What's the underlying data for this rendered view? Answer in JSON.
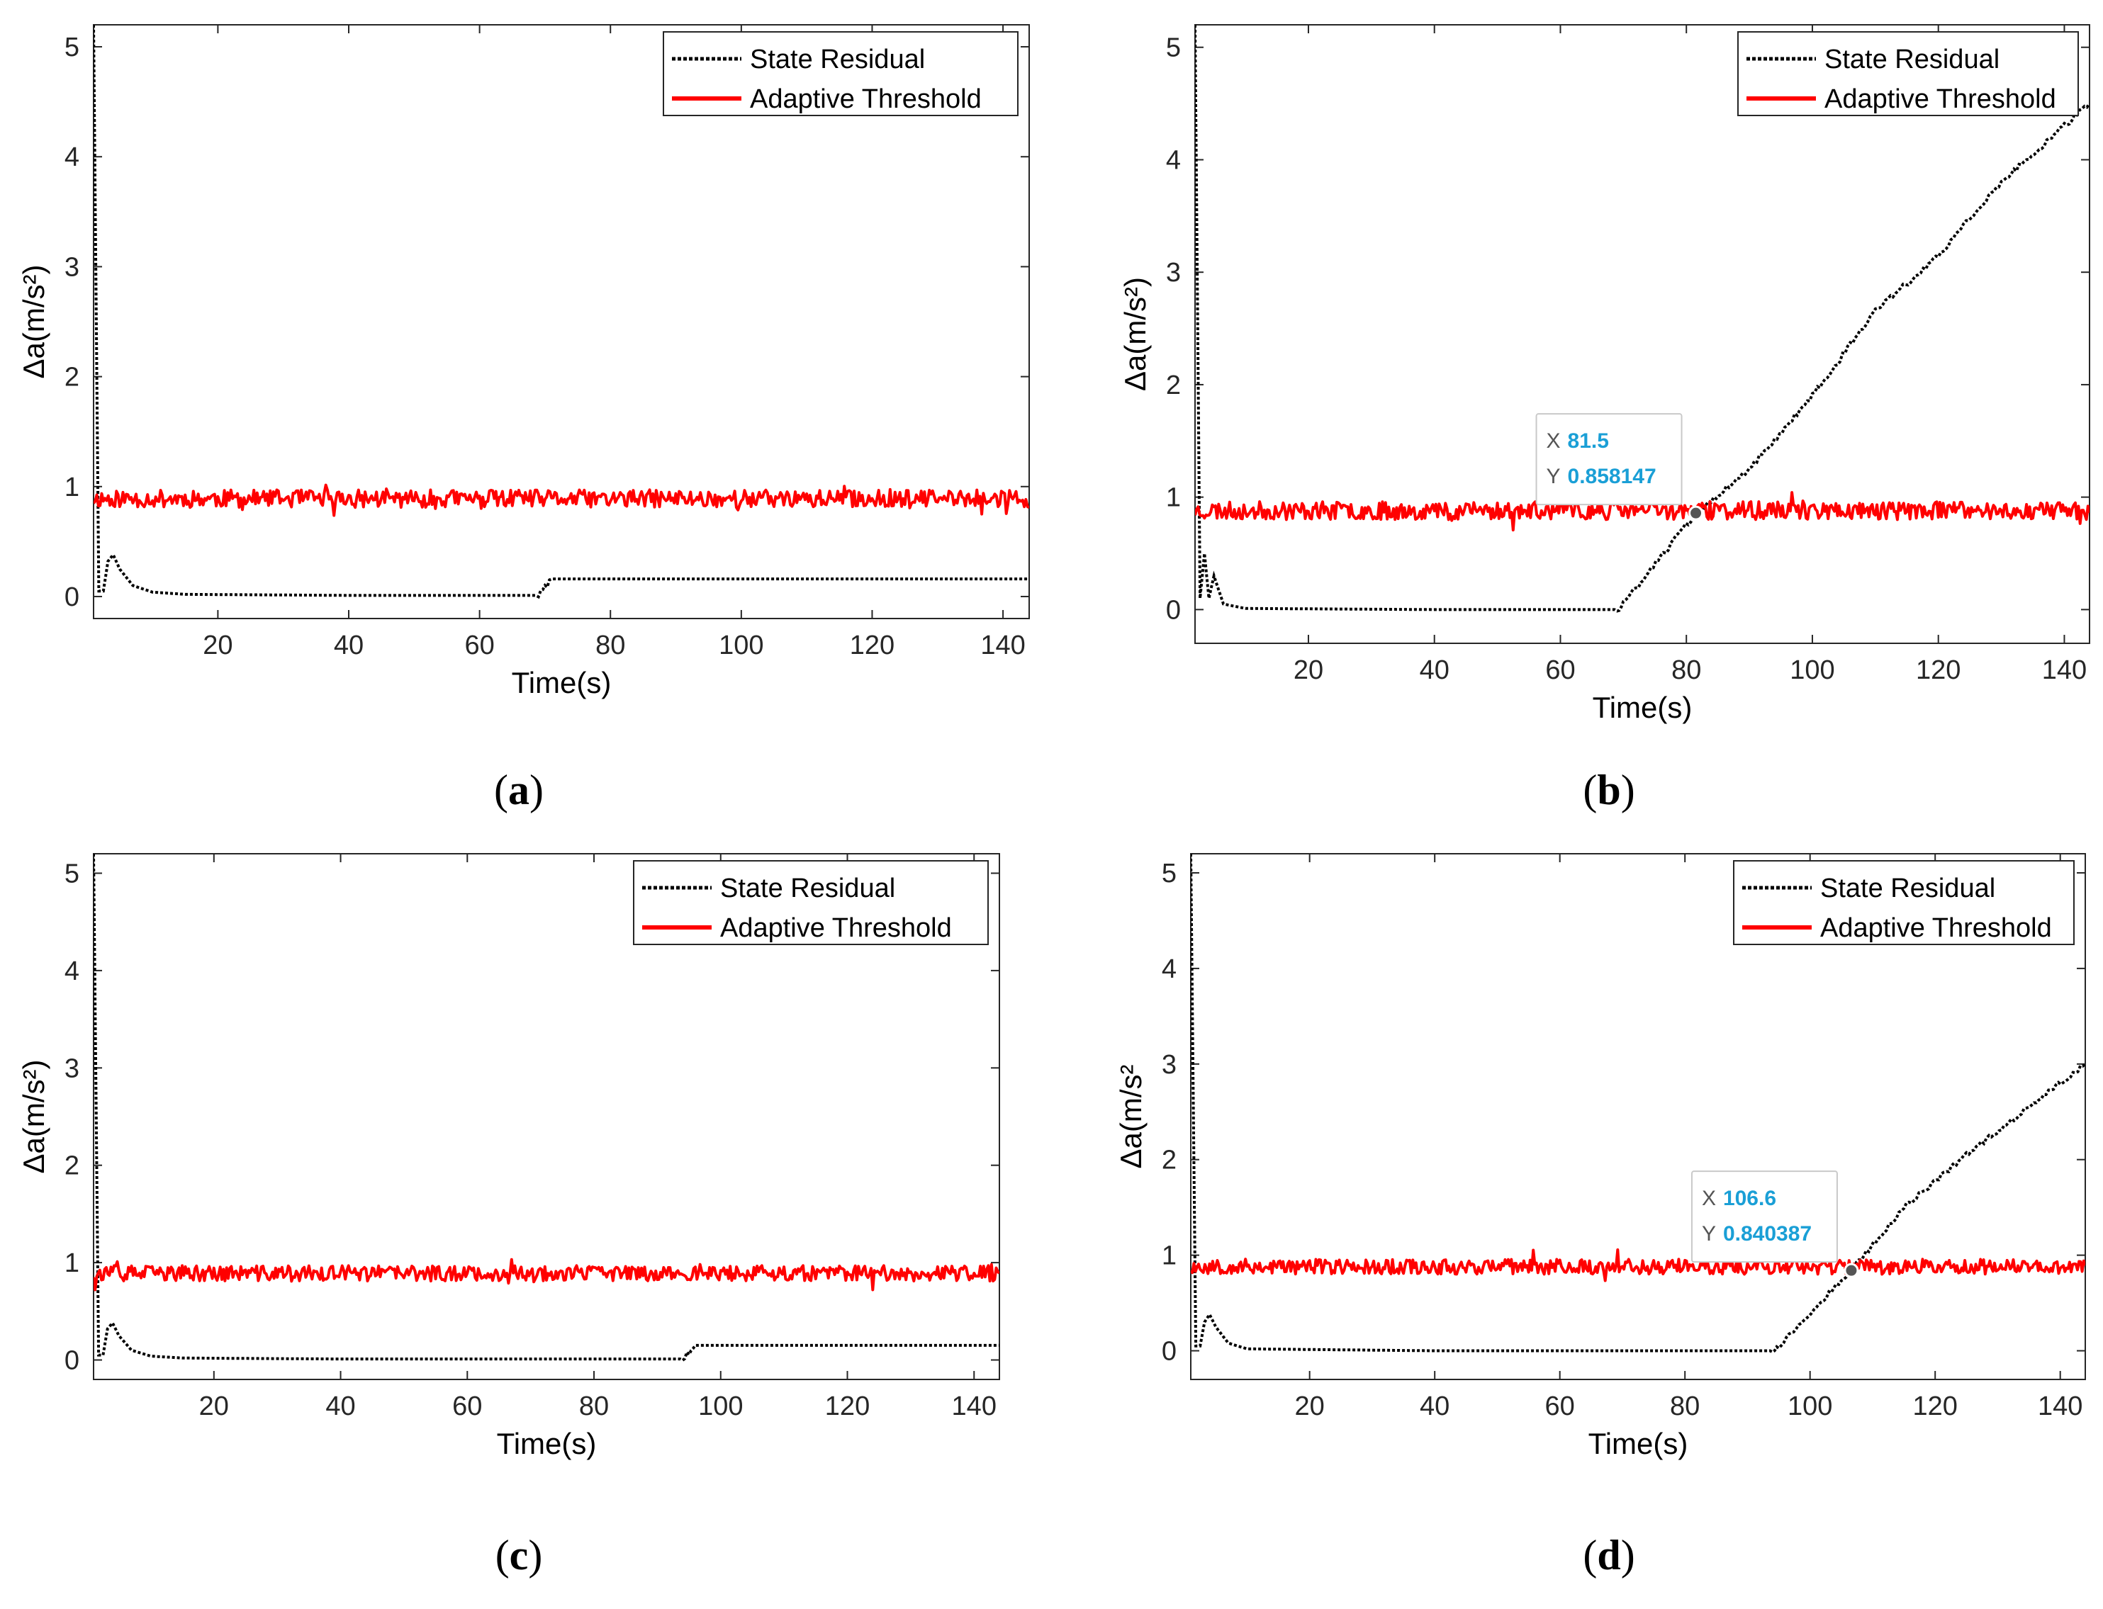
{
  "chart_data": [
    {
      "id": "a",
      "type": "line",
      "caption": "a",
      "xlabel": "Time(s)",
      "ylabel": "Δa(m/s²)",
      "xlim": [
        1,
        144
      ],
      "ylim": [
        -0.2,
        5.2
      ],
      "xticks": [
        "20",
        "40",
        "60",
        "80",
        "100",
        "120",
        "140"
      ],
      "yticks": [
        "0",
        "1",
        "2",
        "3",
        "4",
        "5"
      ],
      "legend": {
        "position": "top-right"
      },
      "series": [
        {
          "name": "State Residual",
          "color": "#000000",
          "style": "dotted",
          "points": [
            [
              1,
              5.2
            ],
            [
              1.8,
              0.05
            ],
            [
              2.5,
              0.05
            ],
            [
              3.2,
              0.32
            ],
            [
              4,
              0.38
            ],
            [
              5,
              0.25
            ],
            [
              7,
              0.1
            ],
            [
              10,
              0.04
            ],
            [
              15,
              0.02
            ],
            [
              40,
              0.01
            ],
            [
              69,
              0.01
            ],
            [
              70,
              0.08
            ],
            [
              71,
              0.16
            ],
            [
              144,
              0.16
            ]
          ]
        },
        {
          "name": "Adaptive Threshold",
          "color": "#ff0000",
          "style": "noisy",
          "mean": 0.89,
          "noise": 0.08,
          "seed": 11,
          "xrange": [
            1,
            144
          ]
        }
      ]
    },
    {
      "id": "b",
      "type": "line",
      "caption": "b",
      "xlabel": "Time(s)",
      "ylabel": "Δa(m/s²)",
      "xlim": [
        2,
        144
      ],
      "ylim": [
        -0.3,
        5.2
      ],
      "xticks": [
        "20",
        "40",
        "60",
        "80",
        "100",
        "120",
        "140"
      ],
      "yticks": [
        "0",
        "1",
        "2",
        "3",
        "4",
        "5"
      ],
      "legend": {
        "position": "top-right"
      },
      "series": [
        {
          "name": "State Residual",
          "color": "#000000",
          "style": "dotted",
          "points": [
            [
              2,
              5.2
            ],
            [
              2.8,
              0.1
            ],
            [
              3.5,
              0.5
            ],
            [
              4.2,
              0.1
            ],
            [
              5,
              0.3
            ],
            [
              6.5,
              0.05
            ],
            [
              10,
              0.01
            ],
            [
              40,
              0.0
            ],
            [
              69,
              0.0
            ],
            [
              70,
              0.05
            ],
            [
              81.5,
              0.858
            ],
            [
              90,
              1.25
            ],
            [
              100,
              1.9
            ],
            [
              110,
              2.65
            ],
            [
              120,
              3.15
            ],
            [
              130,
              3.8
            ],
            [
              144,
              4.5
            ]
          ]
        },
        {
          "name": "Adaptive Threshold",
          "color": "#ff0000",
          "style": "noisy",
          "mean": 0.88,
          "noise": 0.08,
          "seed": 23,
          "xrange": [
            2,
            144
          ]
        }
      ],
      "datatip": {
        "x_label": "X",
        "x": "81.5",
        "y_label": "Y",
        "y": "0.858147",
        "point": [
          81.5,
          0.858147
        ]
      }
    },
    {
      "id": "c",
      "type": "line",
      "caption": "c",
      "xlabel": "Time(s)",
      "ylabel": "Δa(m/s²)",
      "xlim": [
        1,
        144
      ],
      "ylim": [
        -0.2,
        5.2
      ],
      "xticks": [
        "20",
        "40",
        "60",
        "80",
        "100",
        "120",
        "140"
      ],
      "yticks": [
        "0",
        "1",
        "2",
        "3",
        "4",
        "5"
      ],
      "legend": {
        "position": "top-right"
      },
      "series": [
        {
          "name": "State Residual",
          "color": "#000000",
          "style": "dotted",
          "points": [
            [
              1,
              5.2
            ],
            [
              1.8,
              0.05
            ],
            [
              2.5,
              0.05
            ],
            [
              3.2,
              0.32
            ],
            [
              4,
              0.38
            ],
            [
              5,
              0.25
            ],
            [
              7,
              0.1
            ],
            [
              10,
              0.04
            ],
            [
              15,
              0.02
            ],
            [
              40,
              0.01
            ],
            [
              94,
              0.01
            ],
            [
              95,
              0.08
            ],
            [
              96,
              0.15
            ],
            [
              144,
              0.15
            ]
          ]
        },
        {
          "name": "Adaptive Threshold",
          "color": "#ff0000",
          "style": "noisy",
          "mean": 0.89,
          "noise": 0.08,
          "seed": 37,
          "xrange": [
            1,
            144
          ]
        }
      ]
    },
    {
      "id": "d",
      "type": "line",
      "caption": "d",
      "xlabel": "Time(s)",
      "ylabel": "Δa(m/s²",
      "xlim": [
        1,
        144
      ],
      "ylim": [
        -0.3,
        5.2
      ],
      "xticks": [
        "20",
        "40",
        "60",
        "80",
        "100",
        "120",
        "140"
      ],
      "yticks": [
        "0",
        "1",
        "2",
        "3",
        "4",
        "5"
      ],
      "legend": {
        "position": "top-right"
      },
      "series": [
        {
          "name": "State Residual",
          "color": "#000000",
          "style": "dotted",
          "points": [
            [
              1,
              5.2
            ],
            [
              1.8,
              0.05
            ],
            [
              2.5,
              0.05
            ],
            [
              3.2,
              0.3
            ],
            [
              4,
              0.38
            ],
            [
              5,
              0.25
            ],
            [
              7,
              0.08
            ],
            [
              10,
              0.02
            ],
            [
              40,
              0.0
            ],
            [
              94,
              0.0
            ],
            [
              95,
              0.05
            ],
            [
              106.6,
              0.84
            ],
            [
              115,
              1.5
            ],
            [
              125,
              2.05
            ],
            [
              135,
              2.55
            ],
            [
              144,
              3.0
            ]
          ]
        },
        {
          "name": "Adaptive Threshold",
          "color": "#ff0000",
          "style": "noisy",
          "mean": 0.88,
          "noise": 0.08,
          "seed": 53,
          "xrange": [
            1,
            144
          ]
        }
      ],
      "datatip": {
        "x_label": "X",
        "x": "106.6",
        "y_label": "Y",
        "y": "0.840387",
        "point": [
          106.6,
          0.840387
        ]
      }
    }
  ]
}
